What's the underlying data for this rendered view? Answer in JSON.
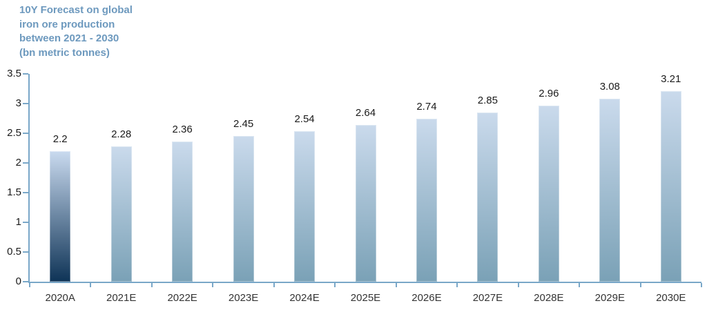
{
  "title": {
    "lines": [
      "10Y Forecast on global",
      "iron ore production",
      "between 2021 - 2030",
      "(bn metric tonnes)"
    ],
    "color": "#6D99BE"
  },
  "chart_data": {
    "type": "bar",
    "title": "10Y Forecast on global iron ore production between 2021 - 2030 (bn metric tonnes)",
    "categories": [
      "2020A",
      "2021E",
      "2022E",
      "2023E",
      "2024E",
      "2025E",
      "2026E",
      "2027E",
      "2028E",
      "2029E",
      "2030E"
    ],
    "values": [
      2.2,
      2.28,
      2.36,
      2.45,
      2.54,
      2.64,
      2.74,
      2.85,
      2.96,
      3.08,
      3.21
    ],
    "value_labels": [
      "2.2",
      "2.28",
      "2.36",
      "2.45",
      "2.54",
      "2.64",
      "2.74",
      "2.85",
      "2.96",
      "3.08",
      "3.21"
    ],
    "xlabel": "",
    "ylabel": "",
    "ylim": [
      0,
      3.5
    ],
    "ytick_step": 0.5,
    "ytick_labels": [
      "0",
      "0.5",
      "1",
      "1.5",
      "2",
      "2.5",
      "3",
      "3.5"
    ],
    "grid": false,
    "legend": false,
    "colors": {
      "actual_bar_gradient_top": "#C9DAEF",
      "actual_bar_gradient_bottom": "#0E3356",
      "estimate_bar_gradient_top": "#CADAEC",
      "estimate_bar_gradient_bottom": "#7AA1B6",
      "axis": "#79A7C8",
      "tick_label": "#1a1a1a",
      "category_label": "#333333"
    },
    "actual_categories": [
      "2020A"
    ]
  }
}
